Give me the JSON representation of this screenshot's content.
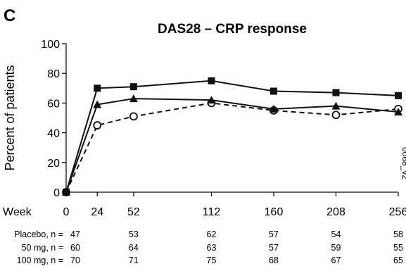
{
  "panel_letter": "C",
  "chart_data": {
    "type": "line",
    "title": "DAS28 – CRP response",
    "ylabel": "Percent of patients",
    "xlabel": "Week",
    "x": [
      0,
      24,
      52,
      112,
      160,
      208,
      256
    ],
    "xticks": [
      "0",
      "24",
      "52",
      "112",
      "160",
      "208",
      "256"
    ],
    "yticks": [
      "0",
      "20",
      "40",
      "60",
      "80",
      "100"
    ],
    "ylim": [
      0,
      100
    ],
    "xlim": [
      0,
      256
    ],
    "grid": false,
    "series": [
      {
        "name": "Placebo",
        "marker": "open-circle",
        "dash": "dashed",
        "values": [
          0,
          45,
          51,
          60,
          55,
          52,
          56
        ]
      },
      {
        "name": "50 mg",
        "marker": "triangle",
        "dash": "solid",
        "values": [
          0,
          59,
          63,
          62,
          56,
          58,
          54
        ]
      },
      {
        "name": "100 mg",
        "marker": "square",
        "dash": "solid",
        "values": [
          0,
          70,
          71,
          75,
          68,
          67,
          65
        ]
      }
    ],
    "n_table": [
      {
        "label": "Placebo, n =",
        "counts": [
          "47",
          "53",
          "62",
          "57",
          "54",
          "58"
        ]
      },
      {
        "label": "50 mg, n =",
        "counts": [
          "60",
          "64",
          "63",
          "57",
          "59",
          "55"
        ]
      },
      {
        "label": "100 mg, n =",
        "counts": [
          "70",
          "71",
          "75",
          "68",
          "67",
          "65"
        ]
      }
    ],
    "figure_code": "0068_v2"
  }
}
